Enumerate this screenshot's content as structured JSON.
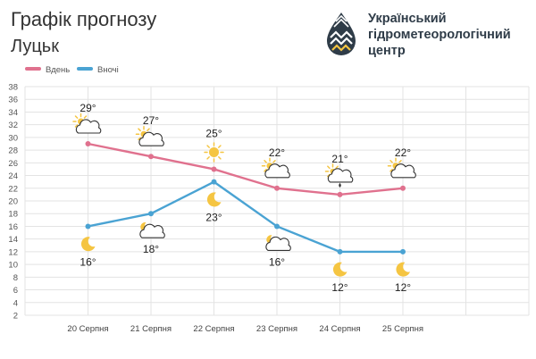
{
  "header": {
    "title": "Графік прогнозу",
    "city": "Луцьк"
  },
  "org": {
    "line1": "Український",
    "line2": "гідрометеорологічний",
    "line3": "центр"
  },
  "colors": {
    "day": "#e0718e",
    "night": "#4aa3d3",
    "grid": "#e3e3e3",
    "sun": "#f5c542"
  },
  "chart_data": {
    "type": "line",
    "categories": [
      "20 Серпня",
      "21 Серпня",
      "22 Серпня",
      "23 Серпня",
      "24 Серпня",
      "25 Серпня"
    ],
    "ylim": [
      2,
      38
    ],
    "yticks": [
      2,
      4,
      6,
      8,
      10,
      12,
      14,
      16,
      18,
      20,
      22,
      24,
      26,
      28,
      30,
      32,
      34,
      36,
      38
    ],
    "grid": true,
    "legend": "top-left",
    "series": [
      {
        "name": "Вдень",
        "values": [
          29,
          27,
          25,
          22,
          21,
          22
        ],
        "labels": [
          "29°",
          "27°",
          "25°",
          "22°",
          "21°",
          "22°"
        ],
        "icons": [
          "partly-cloudy-icon",
          "partly-cloudy-icon",
          "sun-icon",
          "partly-cloudy-icon",
          "cloud-rain-icon",
          "partly-cloudy-icon"
        ]
      },
      {
        "name": "Вночі",
        "values": [
          16,
          18,
          23,
          16,
          12,
          12
        ],
        "labels": [
          "16°",
          "18°",
          "23°",
          "16°",
          "12°",
          "12°"
        ],
        "icons": [
          "moon-icon",
          "moon-cloud-icon",
          "moon-icon",
          "moon-cloud-icon",
          "moon-icon",
          "moon-icon"
        ]
      }
    ]
  }
}
